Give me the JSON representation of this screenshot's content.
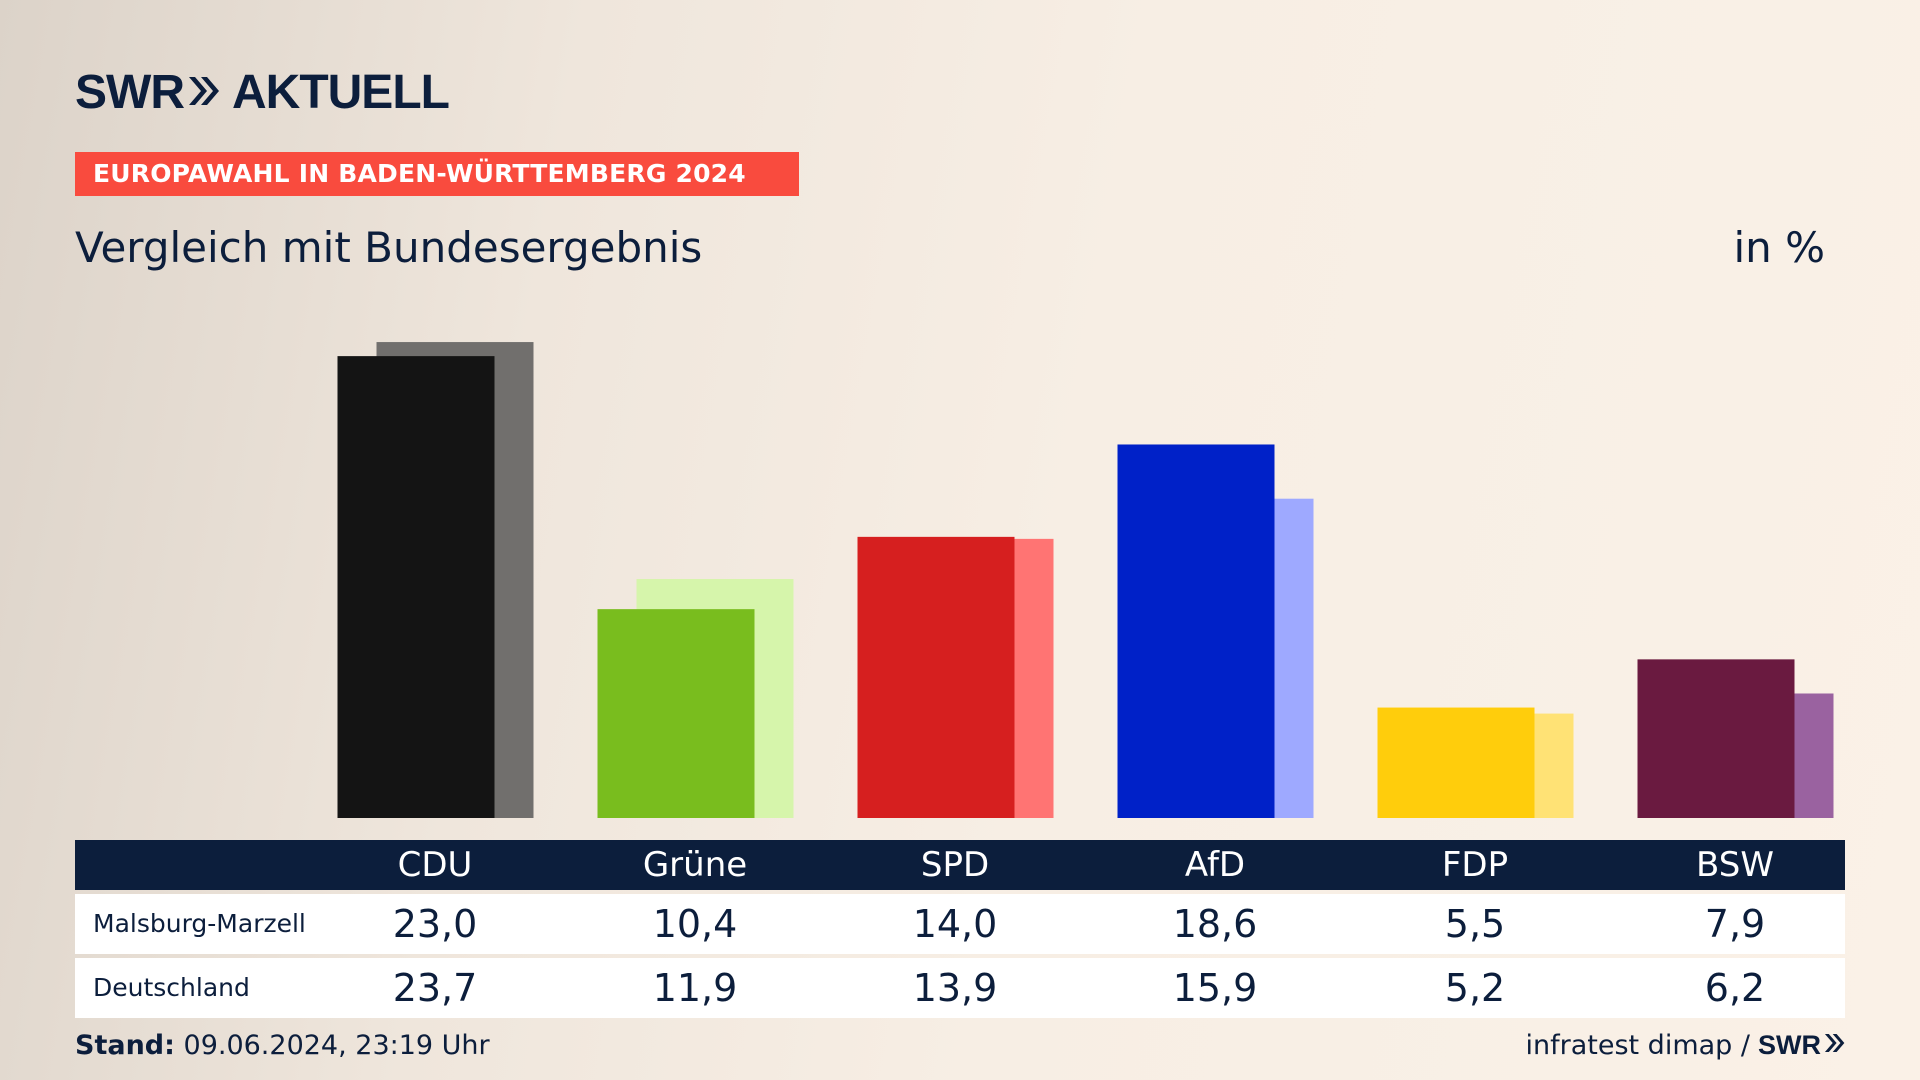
{
  "brand": {
    "logo_left": "SWR",
    "logo_right": "AKTUELL",
    "mini_logo": "SWR"
  },
  "tag": "EUROPAWAHL IN BADEN-WÜRTTEMBERG 2024",
  "title": "Vergleich mit Bundesergebnis",
  "unit": "in %",
  "footer": {
    "stand_label": "Stand:",
    "stand_value": "09.06.2024, 23:19 Uhr",
    "source": "infratest dimap /"
  },
  "colors": {
    "background": "#f7eee4",
    "navy": "#0c1e3c",
    "tag_red": "#f94b3e"
  },
  "chart_data": {
    "type": "bar",
    "categories": [
      "CDU",
      "Grüne",
      "SPD",
      "AfD",
      "FDP",
      "BSW"
    ],
    "series": [
      {
        "name": "Malsburg-Marzell",
        "values": [
          23.0,
          10.4,
          14.0,
          18.6,
          5.5,
          7.9
        ],
        "labels": [
          "23,0",
          "10,4",
          "14,0",
          "18,6",
          "5,5",
          "7,9"
        ],
        "colors": [
          "#141414",
          "#79bd1e",
          "#d61f1f",
          "#0021c8",
          "#ffcd0c",
          "#6a1a40"
        ]
      },
      {
        "name": "Deutschland",
        "values": [
          23.7,
          11.9,
          13.9,
          15.9,
          5.2,
          6.2
        ],
        "labels": [
          "23,7",
          "11,9",
          "13,9",
          "15,9",
          "5,2",
          "6,2"
        ],
        "colors": [
          "#716f6d",
          "#d6f5ab",
          "#ff7473",
          "#9ea9ff",
          "#ffe275",
          "#9a62a0"
        ]
      }
    ],
    "ylim": [
      0,
      24.5
    ],
    "grid": false,
    "legend": "none"
  }
}
